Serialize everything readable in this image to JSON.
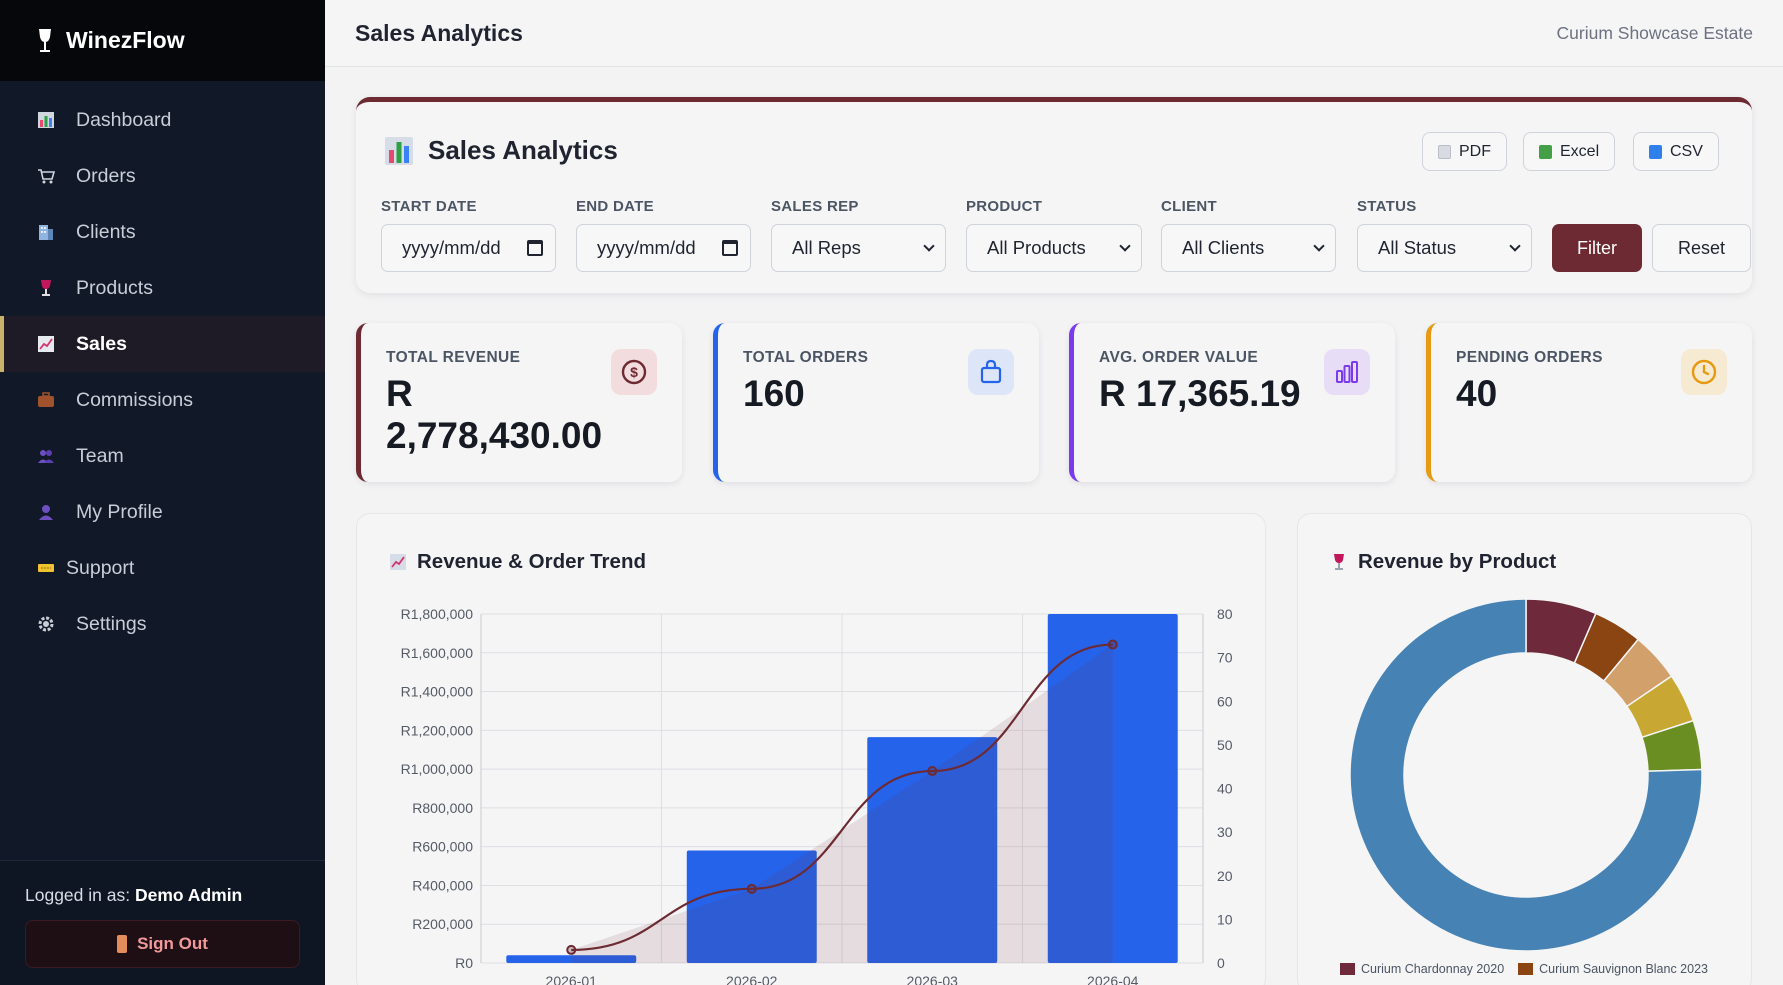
{
  "brand": {
    "name": "WinezFlow",
    "icon": "wine-glass-icon"
  },
  "sidebar": {
    "items": [
      {
        "label": "Dashboard",
        "icon": "bar-chart-icon",
        "active": false
      },
      {
        "label": "Orders",
        "icon": "cart-icon",
        "active": false
      },
      {
        "label": "Clients",
        "icon": "building-icon",
        "active": false
      },
      {
        "label": "Products",
        "icon": "wine-glass-icon",
        "active": false
      },
      {
        "label": "Sales",
        "icon": "trend-chart-icon",
        "active": true
      },
      {
        "label": "Commissions",
        "icon": "briefcase-icon",
        "active": false
      },
      {
        "label": "Team",
        "icon": "users-icon",
        "active": false
      },
      {
        "label": "My Profile",
        "icon": "user-icon",
        "active": false
      },
      {
        "label": "Support",
        "icon": "ticket-icon",
        "active": false
      },
      {
        "label": "Settings",
        "icon": "gear-icon",
        "active": false
      }
    ],
    "logged_prefix": "Logged in as:",
    "user": "Demo Admin",
    "signout": "Sign Out"
  },
  "topbar": {
    "title": "Sales Analytics",
    "estate": "Curium Showcase Estate"
  },
  "analytics": {
    "title": "Sales Analytics",
    "exports": [
      "PDF",
      "Excel",
      "CSV"
    ],
    "filters": [
      {
        "label": "START DATE",
        "value": "yyyy/mm/dd",
        "kind": "date"
      },
      {
        "label": "END DATE",
        "value": "yyyy/mm/dd",
        "kind": "date"
      },
      {
        "label": "SALES REP",
        "value": "All Reps",
        "kind": "select"
      },
      {
        "label": "PRODUCT",
        "value": "All Products",
        "kind": "select"
      },
      {
        "label": "CLIENT",
        "value": "All Clients",
        "kind": "select"
      },
      {
        "label": "STATUS",
        "value": "All Status",
        "kind": "select"
      }
    ],
    "filter_button": "Filter",
    "reset_button": "Reset"
  },
  "stats": [
    {
      "label": "TOTAL REVENUE",
      "value": "R 2,778,430.00",
      "accent": "#6e2a32",
      "icon": "dollar-circle-icon"
    },
    {
      "label": "TOTAL ORDERS",
      "value": "160",
      "accent": "#2563eb",
      "icon": "shopping-bag-icon"
    },
    {
      "label": "AVG. ORDER VALUE",
      "value": "R 17,365.19",
      "accent": "#7c3aed",
      "icon": "bar-chart-icon"
    },
    {
      "label": "PENDING ORDERS",
      "value": "40",
      "accent": "#e59a12",
      "icon": "clock-icon"
    }
  ],
  "trend": {
    "title": "Revenue & Order Trend"
  },
  "donut": {
    "title": "Revenue by Product",
    "legend": [
      {
        "name": "Curium Chardonnay 2020",
        "color": "#6e2a3a"
      },
      {
        "name": "Curium Sauvignon Blanc 2023",
        "color": "#8b4513"
      }
    ]
  },
  "chart_data": [
    {
      "type": "bar",
      "title": "Revenue & Order Trend",
      "categories": [
        "2026-01",
        "2026-02",
        "2026-03",
        "2026-04"
      ],
      "y_ticks": [
        "R0",
        "R200,000",
        "R400,000",
        "R600,000",
        "R800,000",
        "R1,000,000",
        "R1,200,000",
        "R1,400,000",
        "R1,600,000",
        "R1,800,000"
      ],
      "y2_ticks": [
        "0",
        "10",
        "20",
        "30",
        "40",
        "50",
        "60",
        "70",
        "80"
      ],
      "ylim": [
        0,
        1800000
      ],
      "y2lim": [
        0,
        80
      ],
      "grid": true,
      "series": [
        {
          "kind": "bar",
          "values": [
            40000,
            580000,
            1165000,
            1800000
          ],
          "color": "#2563eb"
        },
        {
          "kind": "line",
          "values": [
            3,
            17,
            44,
            73
          ],
          "color": "#6e2a32"
        }
      ]
    },
    {
      "type": "pie",
      "title": "Revenue by Product",
      "legend_position": "bottom",
      "slices": [
        {
          "name": "Curium Chardonnay 2020",
          "value": 6.5,
          "color": "#6e2a3a"
        },
        {
          "name": "Curium Sauvignon Blanc 2023",
          "value": 4.5,
          "color": "#8b4513"
        },
        {
          "name": "",
          "value": 4.5,
          "color": "#d2a06a"
        },
        {
          "name": "",
          "value": 4.5,
          "color": "#c8a832"
        },
        {
          "name": "",
          "value": 4.5,
          "color": "#6b8e23"
        },
        {
          "name": "",
          "value": 75.5,
          "color": "#4682b4"
        }
      ]
    }
  ]
}
